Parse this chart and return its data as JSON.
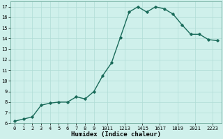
{
  "x": [
    0,
    1,
    2,
    3,
    4,
    5,
    6,
    7,
    8,
    9,
    10,
    11,
    12,
    13,
    14,
    15,
    16,
    17,
    18,
    19,
    20,
    21,
    22,
    23
  ],
  "y": [
    6.2,
    6.4,
    6.6,
    7.7,
    7.9,
    8.0,
    8.0,
    8.5,
    8.3,
    9.0,
    10.5,
    11.7,
    14.1,
    16.5,
    17.0,
    16.5,
    17.0,
    16.8,
    16.3,
    15.3,
    14.4,
    14.4,
    13.9,
    13.8
  ],
  "line_color": "#1a6b5a",
  "marker": "D",
  "markersize": 1.8,
  "linewidth": 1.0,
  "xlabel": "Humidex (Indice chaleur)",
  "xlim": [
    -0.5,
    23.5
  ],
  "ylim": [
    6,
    17.5
  ],
  "yticks": [
    6,
    7,
    8,
    9,
    10,
    11,
    12,
    13,
    14,
    15,
    16,
    17
  ],
  "xtick_labels": [
    "0",
    "1",
    "2",
    "3",
    "4",
    "5",
    "6",
    "7",
    "8",
    "9",
    "1011",
    "1213",
    "1415",
    "1617",
    "1819",
    "2021",
    "2223"
  ],
  "xtick_positions": [
    0,
    1,
    2,
    3,
    4,
    5,
    6,
    7,
    8,
    9,
    10.5,
    12.5,
    14.5,
    16.5,
    18.5,
    20.5,
    22.5
  ],
  "background_color": "#cff0eb",
  "grid_color": "#b0ddd6",
  "tick_labelsize": 5.0,
  "xlabel_fontsize": 6.5
}
